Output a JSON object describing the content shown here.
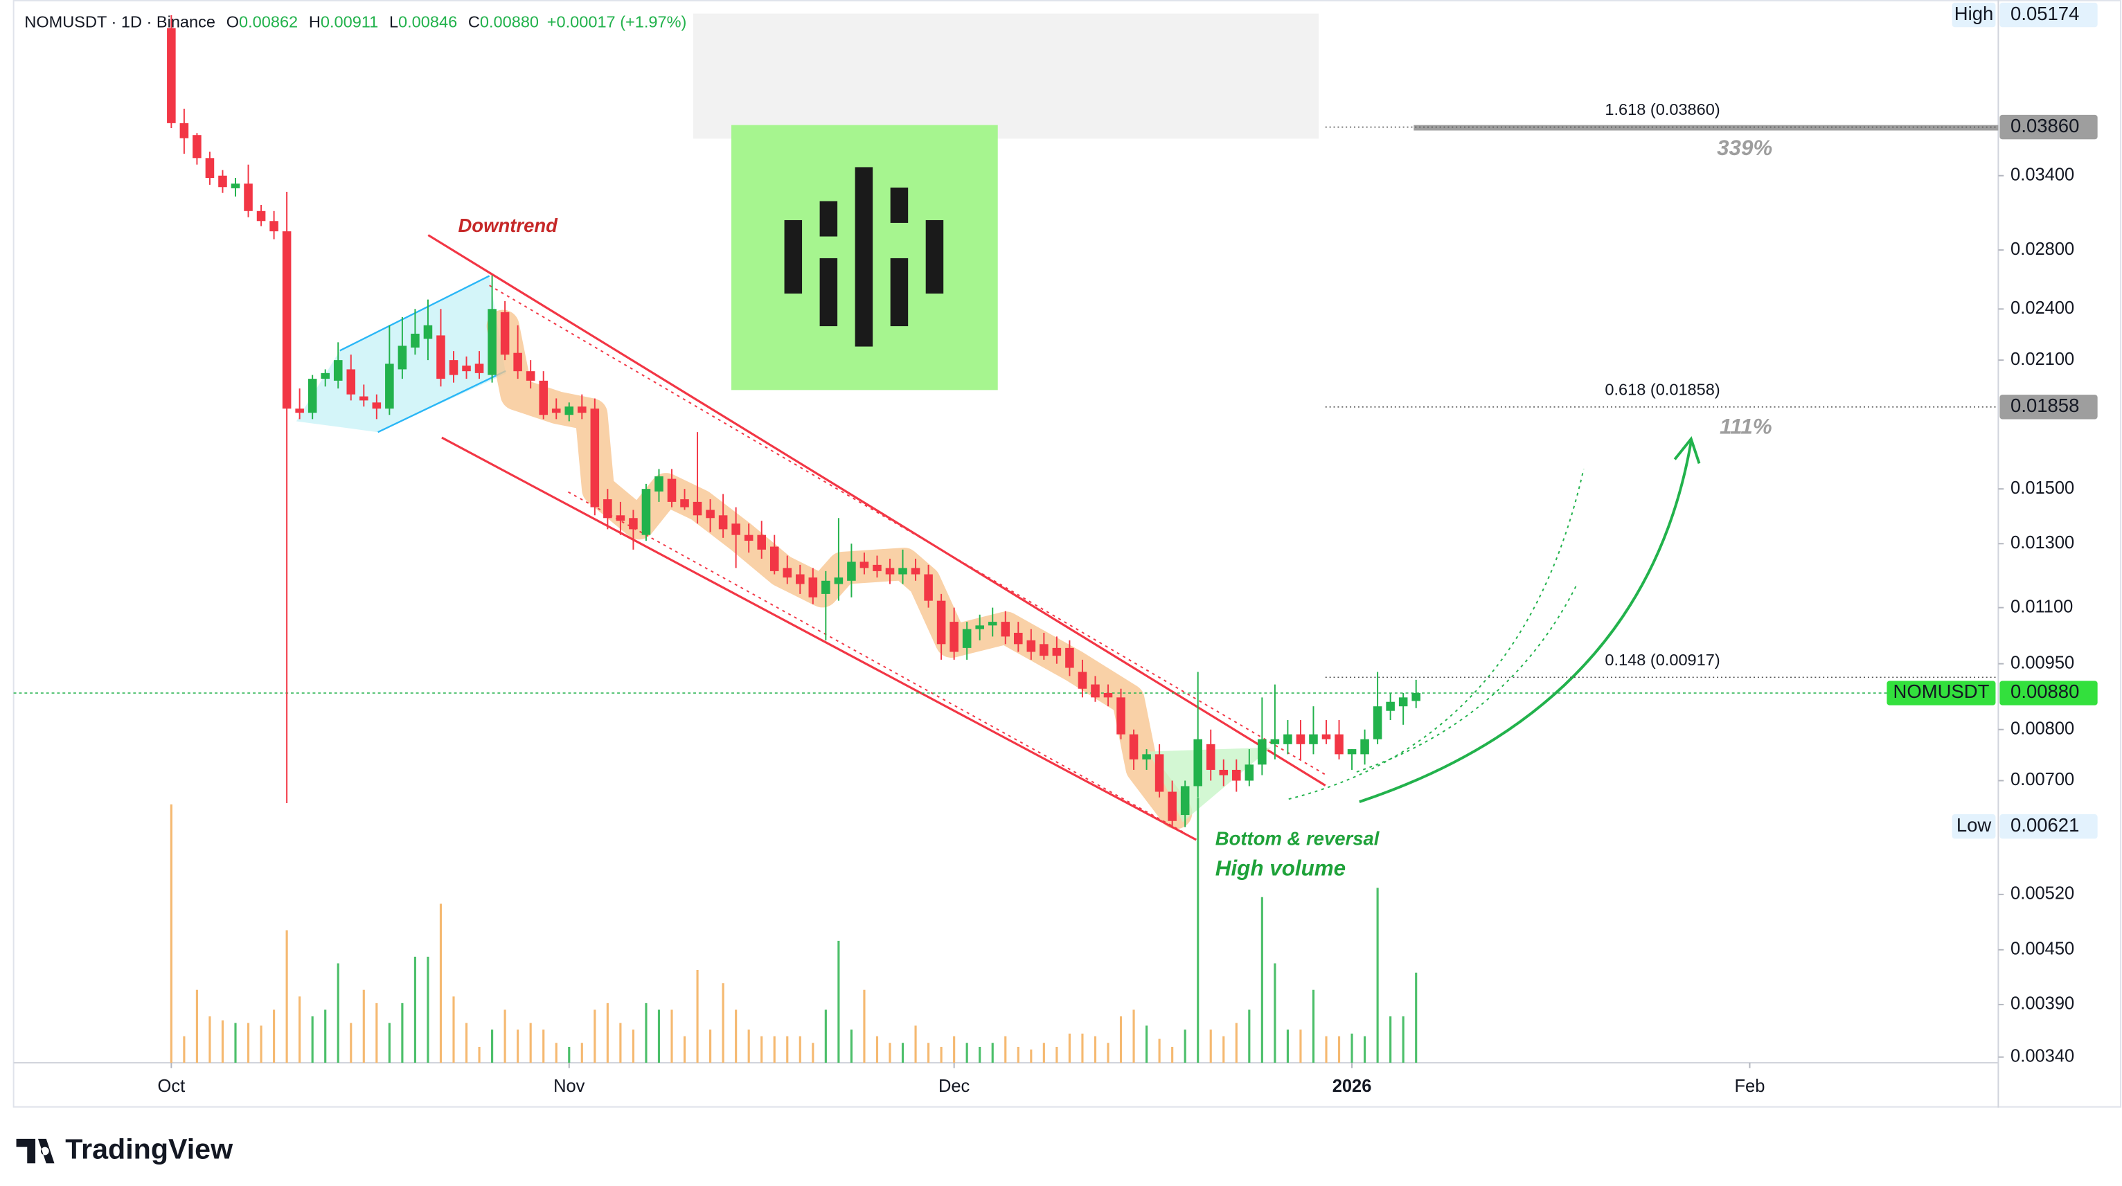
{
  "chart_data": {
    "type": "candlestick",
    "header": {
      "symbol": "NOMUSDT · 1D · Binance",
      "ohlc": [
        {
          "label": "O",
          "value": "0.00862"
        },
        {
          "label": "H",
          "value": "0.00911"
        },
        {
          "label": "L",
          "value": "0.00846"
        },
        {
          "label": "C",
          "value": "0.00880"
        }
      ],
      "change": "+0.00017 (+1.97%)"
    },
    "open": [
      0.05,
      0.039,
      0.0378,
      0.0356,
      0.034,
      0.0329,
      0.0333,
      0.031,
      0.0302,
      0.0294,
      0.0185,
      0.0183,
      0.02,
      0.0199,
      0.0205,
      0.0191,
      0.0188,
      0.0185,
      0.0205,
      0.0217,
      0.0222,
      0.0224,
      0.021,
      0.0207,
      0.0208,
      0.0202,
      0.0238,
      0.0214,
      0.0204,
      0.0199,
      0.0185,
      0.0182,
      0.0186,
      0.0185,
      0.0146,
      0.014,
      0.0139,
      0.0133,
      0.0149,
      0.0154,
      0.0146,
      0.0145,
      0.0142,
      0.014,
      0.0137,
      0.0133,
      0.0133,
      0.0129,
      0.0122,
      0.012,
      0.0119,
      0.0114,
      0.0117,
      0.0118,
      0.0124,
      0.0123,
      0.0122,
      0.012,
      0.0122,
      0.012,
      0.0112,
      0.0106,
      0.0099,
      0.0104,
      0.0105,
      0.0106,
      0.0103,
      0.0101,
      0.01,
      0.0099,
      0.0099,
      0.0093,
      0.009,
      0.0088,
      0.0087,
      0.0079,
      0.0074,
      0.0075,
      0.0068,
      0.0064,
      0.0069,
      0.0077,
      0.0072,
      0.0072,
      0.007,
      0.0073,
      0.0077,
      0.0077,
      0.0079,
      0.0077,
      0.0079,
      0.0079,
      0.0075,
      0.0075,
      0.0078,
      0.0084,
      0.0085,
      0.00862
    ],
    "high": [
      0.0517,
      0.0405,
      0.038,
      0.0362,
      0.0345,
      0.0338,
      0.035,
      0.0315,
      0.031,
      0.0326,
      0.0195,
      0.0202,
      0.0205,
      0.022,
      0.0213,
      0.0197,
      0.0192,
      0.023,
      0.0235,
      0.024,
      0.0246,
      0.024,
      0.0215,
      0.0212,
      0.0215,
      0.0262,
      0.0245,
      0.023,
      0.021,
      0.0204,
      0.019,
      0.0188,
      0.0192,
      0.019,
      0.015,
      0.0145,
      0.0142,
      0.0152,
      0.0158,
      0.0158,
      0.015,
      0.0174,
      0.0146,
      0.0148,
      0.0143,
      0.0137,
      0.0138,
      0.0133,
      0.0126,
      0.0123,
      0.0122,
      0.0121,
      0.0139,
      0.013,
      0.0127,
      0.0126,
      0.0125,
      0.0128,
      0.0125,
      0.0123,
      0.0114,
      0.011,
      0.0106,
      0.0108,
      0.011,
      0.0109,
      0.0106,
      0.0104,
      0.0103,
      0.0102,
      0.0101,
      0.0096,
      0.0092,
      0.009,
      0.0089,
      0.008,
      0.0076,
      0.0077,
      0.007,
      0.007,
      0.0093,
      0.008,
      0.0074,
      0.0074,
      0.0076,
      0.0087,
      0.009,
      0.0082,
      0.0082,
      0.0085,
      0.0082,
      0.0082,
      0.0076,
      0.008,
      0.0093,
      0.0088,
      0.0088,
      0.00911
    ],
    "low": [
      0.0385,
      0.036,
      0.035,
      0.0332,
      0.0325,
      0.0322,
      0.0305,
      0.0298,
      0.0288,
      0.0066,
      0.018,
      0.018,
      0.0196,
      0.0195,
      0.0189,
      0.0186,
      0.018,
      0.0182,
      0.02,
      0.0213,
      0.021,
      0.0196,
      0.0198,
      0.02,
      0.02,
      0.0198,
      0.021,
      0.02,
      0.0195,
      0.018,
      0.018,
      0.0179,
      0.018,
      0.014,
      0.0135,
      0.0133,
      0.0128,
      0.0131,
      0.0145,
      0.0143,
      0.0142,
      0.0137,
      0.0134,
      0.0132,
      0.0122,
      0.0127,
      0.0125,
      0.012,
      0.0117,
      0.0114,
      0.0111,
      0.0101,
      0.0112,
      0.0113,
      0.012,
      0.0119,
      0.0117,
      0.0117,
      0.0118,
      0.011,
      0.0096,
      0.0096,
      0.0096,
      0.0101,
      0.0102,
      0.01,
      0.0098,
      0.0096,
      0.0096,
      0.0095,
      0.0092,
      0.0087,
      0.0086,
      0.0085,
      0.0078,
      0.0072,
      0.0072,
      0.0067,
      0.0062,
      0.0062,
      0.0067,
      0.007,
      0.0069,
      0.0068,
      0.0069,
      0.0071,
      0.0074,
      0.0075,
      0.0074,
      0.0075,
      0.0077,
      0.0074,
      0.0072,
      0.0073,
      0.0077,
      0.0082,
      0.0081,
      0.00846
    ],
    "close": [
      0.039,
      0.0375,
      0.0356,
      0.0338,
      0.033,
      0.0333,
      0.031,
      0.0302,
      0.0294,
      0.0185,
      0.0183,
      0.02,
      0.0203,
      0.021,
      0.0192,
      0.0189,
      0.0185,
      0.0208,
      0.0218,
      0.0225,
      0.023,
      0.02,
      0.0202,
      0.0204,
      0.0203,
      0.024,
      0.0213,
      0.0204,
      0.0199,
      0.0182,
      0.0183,
      0.0186,
      0.0183,
      0.0143,
      0.0139,
      0.0138,
      0.0135,
      0.015,
      0.0155,
      0.0145,
      0.0143,
      0.014,
      0.0139,
      0.0135,
      0.0133,
      0.0131,
      0.0128,
      0.0121,
      0.0119,
      0.0117,
      0.0113,
      0.0118,
      0.0119,
      0.0124,
      0.0122,
      0.0121,
      0.012,
      0.0122,
      0.012,
      0.0112,
      0.01,
      0.0098,
      0.0104,
      0.0105,
      0.0106,
      0.0102,
      0.01,
      0.0098,
      0.0097,
      0.0097,
      0.0094,
      0.0089,
      0.0087,
      0.0087,
      0.0079,
      0.0074,
      0.0075,
      0.0068,
      0.0063,
      0.0069,
      0.0078,
      0.0072,
      0.0071,
      0.007,
      0.0073,
      0.0078,
      0.0078,
      0.0079,
      0.0077,
      0.0079,
      0.0078,
      0.0075,
      0.0076,
      0.0078,
      0.0085,
      0.0086,
      0.0087,
      0.0088
    ],
    "volume": [
      195,
      20,
      55,
      35,
      32,
      30,
      30,
      28,
      40,
      100,
      50,
      35,
      40,
      75,
      30,
      55,
      45,
      30,
      45,
      80,
      80,
      120,
      50,
      30,
      12,
      25,
      40,
      25,
      30,
      25,
      15,
      12,
      15,
      40,
      45,
      30,
      25,
      45,
      40,
      40,
      20,
      70,
      25,
      60,
      40,
      25,
      20,
      20,
      20,
      20,
      15,
      40,
      92,
      25,
      55,
      20,
      15,
      15,
      28,
      15,
      12,
      20,
      15,
      12,
      15,
      20,
      12,
      10,
      15,
      12,
      22,
      22,
      20,
      15,
      35,
      40,
      28,
      18,
      12,
      25,
      200,
      25,
      20,
      30,
      40,
      125,
      75,
      25,
      25,
      55,
      20,
      20,
      22,
      20,
      132,
      35,
      35,
      68
    ],
    "up_color": "#22b24c",
    "down_color": "#f23645",
    "volume_up_color": "#4cbf6a",
    "volume_down_color": "#f5b971",
    "log_scale": true,
    "xlim": [
      -12.29,
      142.37
    ],
    "xticks": [
      {
        "value": 0,
        "label": "Oct"
      },
      {
        "value": 31,
        "label": "Nov"
      },
      {
        "value": 61,
        "label": "Dec"
      },
      {
        "value": 92,
        "label": "2026"
      },
      {
        "value": 123,
        "label": "Feb"
      }
    ],
    "ylim": [
      0.00335,
      0.0538
    ],
    "yticks": [
      {
        "value": 0.034,
        "label": "0.03400"
      },
      {
        "value": 0.028,
        "label": "0.02800"
      },
      {
        "value": 0.024,
        "label": "0.02400"
      },
      {
        "value": 0.021,
        "label": "0.02100"
      },
      {
        "value": 0.015,
        "label": "0.01500"
      },
      {
        "value": 0.013,
        "label": "0.01300"
      },
      {
        "value": 0.011,
        "label": "0.01100"
      },
      {
        "value": 0.0095,
        "label": "0.00950"
      },
      {
        "value": 0.008,
        "label": "0.00800"
      },
      {
        "value": 0.007,
        "label": "0.00700"
      },
      {
        "value": 0.0052,
        "label": "0.00520"
      },
      {
        "value": 0.0045,
        "label": "0.00450"
      },
      {
        "value": 0.0039,
        "label": "0.00390"
      },
      {
        "value": 0.0034,
        "label": "0.00340"
      }
    ],
    "fib_levels": [
      {
        "label": "1.618 (0.03860)",
        "value": 0.0386
      },
      {
        "label": "0.618 (0.01858)",
        "value": 0.01858
      },
      {
        "label": "0.148 (0.00917)",
        "value": 0.00917
      }
    ],
    "price_tags": [
      {
        "name": "High",
        "value": 0.05174,
        "value_label": "0.05174",
        "color": "#e3f2fd",
        "text_color": "#131722"
      },
      {
        "value": 0.0386,
        "value_label": "0.03860",
        "color": "#9e9e9e",
        "text_color": "#131722"
      },
      {
        "value": 0.01858,
        "value_label": "0.01858",
        "color": "#9e9e9e",
        "text_color": "#131722"
      },
      {
        "name": "NOMUSDT",
        "value": 0.0088,
        "value_label": "0.00880",
        "color": "#33e03d",
        "text_color": "#131722"
      },
      {
        "name": "Low",
        "value": 0.00621,
        "value_label": "0.00621",
        "color": "#e3f2fd",
        "text_color": "#131722"
      }
    ],
    "annotations": [
      "Downtrend",
      "Bottom & reversal",
      "High volume",
      "339%",
      "111%"
    ],
    "watermark": "TradingView"
  }
}
